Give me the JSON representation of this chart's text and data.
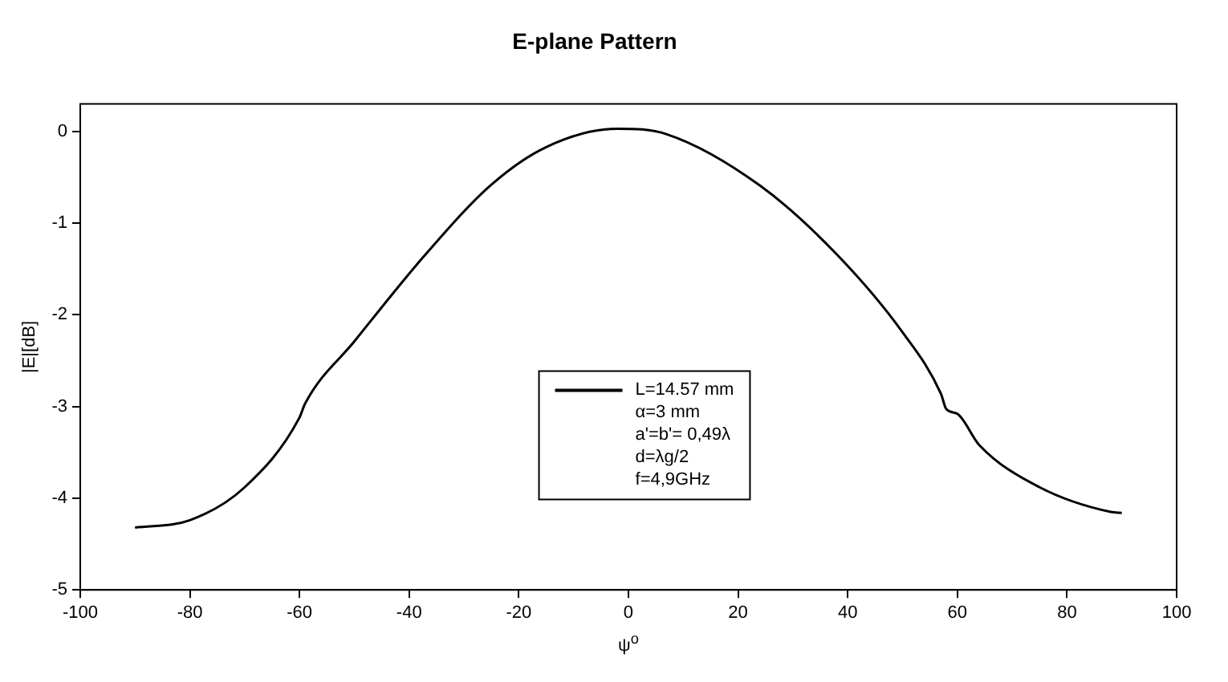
{
  "chart_data": {
    "type": "line",
    "title": "E-plane Pattern",
    "xlabel": "ψ$^{o}$",
    "ylabel": "|E|[dB]",
    "xlim": [
      -100,
      100
    ],
    "xticks": [
      -100,
      -80,
      -60,
      -40,
      -20,
      0,
      20,
      40,
      60,
      80,
      100
    ],
    "ylim": [
      -5,
      0.3
    ],
    "yticks": [
      -5,
      -4,
      -3,
      -2,
      -1,
      0
    ],
    "grid": false,
    "legend": "center",
    "marker": "none",
    "line_style": "solid",
    "annotations": [
      "α=3 mm",
      "a'=b'= 0,49λ",
      "d=λg/2",
      "f=4,9GHz"
    ],
    "series": [
      {
        "name": "L=14.57 mm",
        "color": "#000000",
        "x": [
          -90,
          -80,
          -70,
          -60,
          -59,
          -50,
          -37,
          -25,
          -15,
          -2,
          7,
          24,
          38,
          50,
          57,
          58,
          60,
          64,
          75,
          88,
          90
        ],
        "values": [
          -4.32,
          -4.24,
          -3.88,
          -3.12,
          -2.97,
          -2.29,
          -1.34,
          -0.58,
          -0.17,
          0.03,
          -0.03,
          -0.59,
          -1.34,
          -2.19,
          -2.86,
          -3.03,
          -3.08,
          -3.42,
          -3.88,
          -4.15,
          -4.16
        ]
      }
    ]
  }
}
